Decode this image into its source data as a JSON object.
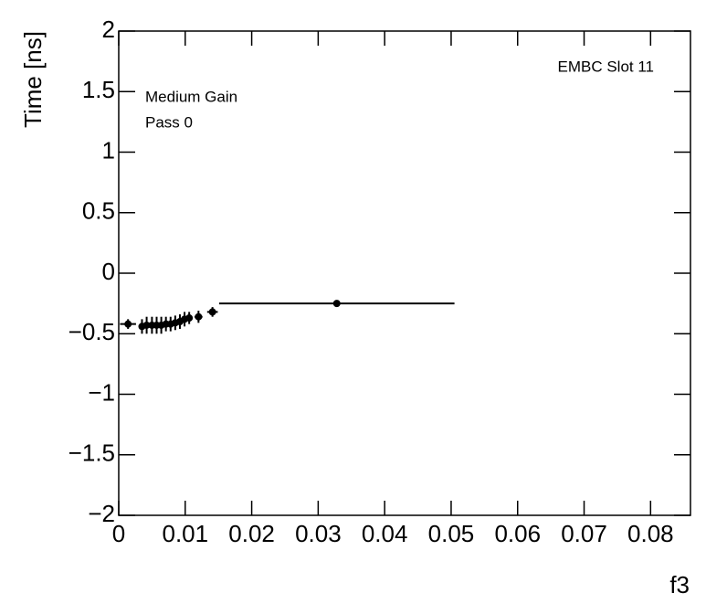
{
  "chart_data": {
    "type": "scatter",
    "x_label": "f3",
    "y_label": "Time [ns]",
    "annotations": [
      "EMBC Slot 11",
      "Medium Gain",
      "Pass 0"
    ],
    "series": [
      {
        "color": "#000000",
        "x": [
          0.0014,
          0.0035,
          0.0042,
          0.005,
          0.0057,
          0.0064,
          0.0071,
          0.0078,
          0.0085,
          0.0092,
          0.0099,
          0.0106,
          0.012,
          0.0141,
          0.0328
        ],
        "values": [
          -0.42,
          -0.44,
          -0.43,
          -0.43,
          -0.43,
          -0.43,
          -0.42,
          -0.42,
          -0.41,
          -0.4,
          -0.38,
          -0.37,
          -0.36,
          -0.32,
          -0.25
        ],
        "xerr": [
          0.0012,
          0.0004,
          0.0003,
          0.0003,
          0.0003,
          0.0003,
          0.0003,
          0.0003,
          0.0003,
          0.0003,
          0.0003,
          0.0003,
          0.0006,
          0.0008,
          0.0177
        ],
        "yerr": [
          0.04,
          0.06,
          0.07,
          0.07,
          0.07,
          0.07,
          0.06,
          0.06,
          0.06,
          0.06,
          0.06,
          0.05,
          0.05,
          0.04,
          0.02
        ]
      }
    ],
    "xlim": [
      0,
      0.086
    ],
    "ylim": [
      -2,
      2
    ],
    "xticks": [
      0,
      0.01,
      0.02,
      0.03,
      0.04,
      0.05,
      0.06,
      0.07,
      0.08
    ],
    "yticks": [
      {
        "value": -2,
        "label": "−2"
      },
      {
        "value": -1.5,
        "label": "−1.5"
      },
      {
        "value": -1,
        "label": "−1"
      },
      {
        "value": -0.5,
        "label": "−0.5"
      },
      0,
      0.5,
      1,
      1.5,
      2
    ]
  }
}
